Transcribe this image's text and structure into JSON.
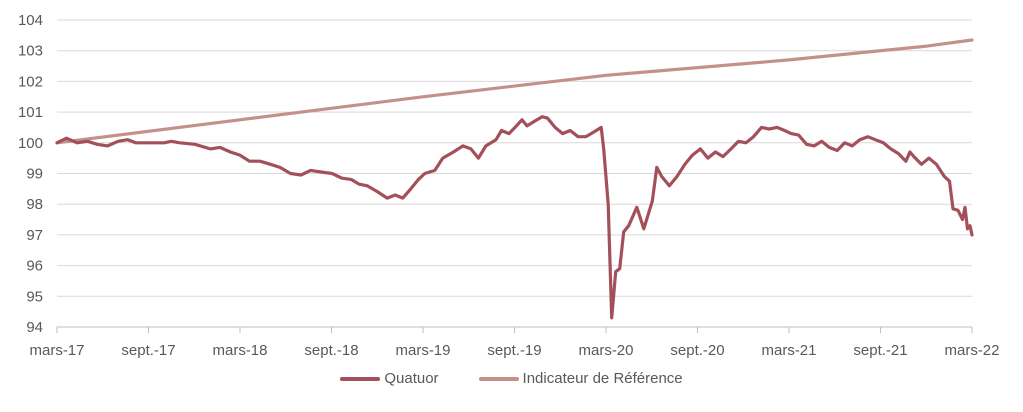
{
  "chart_data": {
    "type": "line",
    "title": "",
    "xlabel": "",
    "ylabel": "",
    "x_tick_labels": [
      "mars-17",
      "sept.-17",
      "mars-18",
      "sept.-18",
      "mars-19",
      "sept.-19",
      "mars-20",
      "sept.-20",
      "mars-21",
      "sept.-21",
      "mars-22"
    ],
    "x_range_months": [
      "2017-03",
      "2022-03"
    ],
    "y_ticks": [
      94,
      95,
      96,
      97,
      98,
      99,
      100,
      101,
      102,
      103,
      104
    ],
    "ylim": [
      94,
      104
    ],
    "grid": "horizontal",
    "legend_position": "bottom",
    "series": [
      {
        "name": "Quatuor",
        "color": "#A4505A",
        "points": [
          [
            "2017-03-01",
            100.0
          ],
          [
            "2017-03-20",
            100.15
          ],
          [
            "2017-04-10",
            100.0
          ],
          [
            "2017-05-01",
            100.05
          ],
          [
            "2017-05-20",
            99.95
          ],
          [
            "2017-06-10",
            99.9
          ],
          [
            "2017-07-01",
            100.05
          ],
          [
            "2017-07-20",
            100.1
          ],
          [
            "2017-08-05",
            100.0
          ],
          [
            "2017-09-01",
            100.0
          ],
          [
            "2017-10-01",
            100.0
          ],
          [
            "2017-10-15",
            100.05
          ],
          [
            "2017-11-01",
            100.0
          ],
          [
            "2017-12-01",
            99.95
          ],
          [
            "2018-01-01",
            99.8
          ],
          [
            "2018-01-20",
            99.85
          ],
          [
            "2018-02-10",
            99.7
          ],
          [
            "2018-03-01",
            99.6
          ],
          [
            "2018-03-20",
            99.4
          ],
          [
            "2018-04-10",
            99.4
          ],
          [
            "2018-05-01",
            99.3
          ],
          [
            "2018-05-20",
            99.2
          ],
          [
            "2018-06-10",
            99.0
          ],
          [
            "2018-07-01",
            98.95
          ],
          [
            "2018-07-20",
            99.1
          ],
          [
            "2018-08-10",
            99.05
          ],
          [
            "2018-09-01",
            99.0
          ],
          [
            "2018-09-20",
            98.85
          ],
          [
            "2018-10-10",
            98.8
          ],
          [
            "2018-10-25",
            98.65
          ],
          [
            "2018-11-10",
            98.6
          ],
          [
            "2018-12-01",
            98.4
          ],
          [
            "2018-12-20",
            98.2
          ],
          [
            "2019-01-05",
            98.3
          ],
          [
            "2019-01-20",
            98.2
          ],
          [
            "2019-02-05",
            98.5
          ],
          [
            "2019-02-20",
            98.8
          ],
          [
            "2019-03-05",
            99.0
          ],
          [
            "2019-03-25",
            99.1
          ],
          [
            "2019-04-10",
            99.5
          ],
          [
            "2019-05-01",
            99.7
          ],
          [
            "2019-05-20",
            99.9
          ],
          [
            "2019-06-05",
            99.8
          ],
          [
            "2019-06-20",
            99.5
          ],
          [
            "2019-07-05",
            99.9
          ],
          [
            "2019-07-25",
            100.1
          ],
          [
            "2019-08-05",
            100.4
          ],
          [
            "2019-08-20",
            100.3
          ],
          [
            "2019-09-01",
            100.5
          ],
          [
            "2019-09-15",
            100.75
          ],
          [
            "2019-09-25",
            100.55
          ],
          [
            "2019-10-10",
            100.7
          ],
          [
            "2019-10-25",
            100.85
          ],
          [
            "2019-11-05",
            100.8
          ],
          [
            "2019-11-20",
            100.5
          ],
          [
            "2019-12-05",
            100.3
          ],
          [
            "2019-12-20",
            100.4
          ],
          [
            "2020-01-05",
            100.2
          ],
          [
            "2020-01-20",
            100.2
          ],
          [
            "2020-02-05",
            100.35
          ],
          [
            "2020-02-15",
            100.45
          ],
          [
            "2020-02-20",
            100.5
          ],
          [
            "2020-02-25",
            99.8
          ],
          [
            "2020-03-05",
            98.0
          ],
          [
            "2020-03-12",
            94.3
          ],
          [
            "2020-03-20",
            95.8
          ],
          [
            "2020-03-28",
            95.9
          ],
          [
            "2020-04-05",
            97.1
          ],
          [
            "2020-04-15",
            97.3
          ],
          [
            "2020-05-01",
            97.9
          ],
          [
            "2020-05-15",
            97.2
          ],
          [
            "2020-06-01",
            98.1
          ],
          [
            "2020-06-10",
            99.2
          ],
          [
            "2020-06-20",
            98.9
          ],
          [
            "2020-07-05",
            98.6
          ],
          [
            "2020-07-20",
            98.9
          ],
          [
            "2020-08-05",
            99.3
          ],
          [
            "2020-08-20",
            99.6
          ],
          [
            "2020-09-05",
            99.8
          ],
          [
            "2020-09-20",
            99.5
          ],
          [
            "2020-10-05",
            99.7
          ],
          [
            "2020-10-20",
            99.55
          ],
          [
            "2020-11-05",
            99.8
          ],
          [
            "2020-11-20",
            100.05
          ],
          [
            "2020-12-05",
            100.0
          ],
          [
            "2020-12-20",
            100.2
          ],
          [
            "2021-01-05",
            100.5
          ],
          [
            "2021-01-20",
            100.45
          ],
          [
            "2021-02-05",
            100.5
          ],
          [
            "2021-02-20",
            100.4
          ],
          [
            "2021-03-05",
            100.3
          ],
          [
            "2021-03-20",
            100.25
          ],
          [
            "2021-04-05",
            99.95
          ],
          [
            "2021-04-20",
            99.9
          ],
          [
            "2021-05-05",
            100.05
          ],
          [
            "2021-05-20",
            99.85
          ],
          [
            "2021-06-05",
            99.75
          ],
          [
            "2021-06-20",
            100.0
          ],
          [
            "2021-07-05",
            99.9
          ],
          [
            "2021-07-20",
            100.1
          ],
          [
            "2021-08-05",
            100.2
          ],
          [
            "2021-08-20",
            100.1
          ],
          [
            "2021-09-05",
            100.0
          ],
          [
            "2021-09-20",
            99.8
          ],
          [
            "2021-10-05",
            99.65
          ],
          [
            "2021-10-20",
            99.4
          ],
          [
            "2021-10-28",
            99.7
          ],
          [
            "2021-11-05",
            99.55
          ],
          [
            "2021-11-20",
            99.3
          ],
          [
            "2021-12-05",
            99.5
          ],
          [
            "2021-12-20",
            99.3
          ],
          [
            "2022-01-05",
            98.9
          ],
          [
            "2022-01-15",
            98.75
          ],
          [
            "2022-01-22",
            97.85
          ],
          [
            "2022-02-01",
            97.8
          ],
          [
            "2022-02-10",
            97.5
          ],
          [
            "2022-02-15",
            97.9
          ],
          [
            "2022-02-20",
            97.2
          ],
          [
            "2022-02-25",
            97.3
          ],
          [
            "2022-03-01",
            97.0
          ]
        ]
      },
      {
        "name": "Indicateur de Référence",
        "color": "#C4918A",
        "points": [
          [
            "2017-03-01",
            100.0
          ],
          [
            "2018-03-01",
            100.75
          ],
          [
            "2019-03-01",
            101.5
          ],
          [
            "2020-03-01",
            102.2
          ],
          [
            "2021-03-01",
            102.7
          ],
          [
            "2021-12-01",
            103.15
          ],
          [
            "2022-03-01",
            103.35
          ]
        ]
      }
    ]
  }
}
